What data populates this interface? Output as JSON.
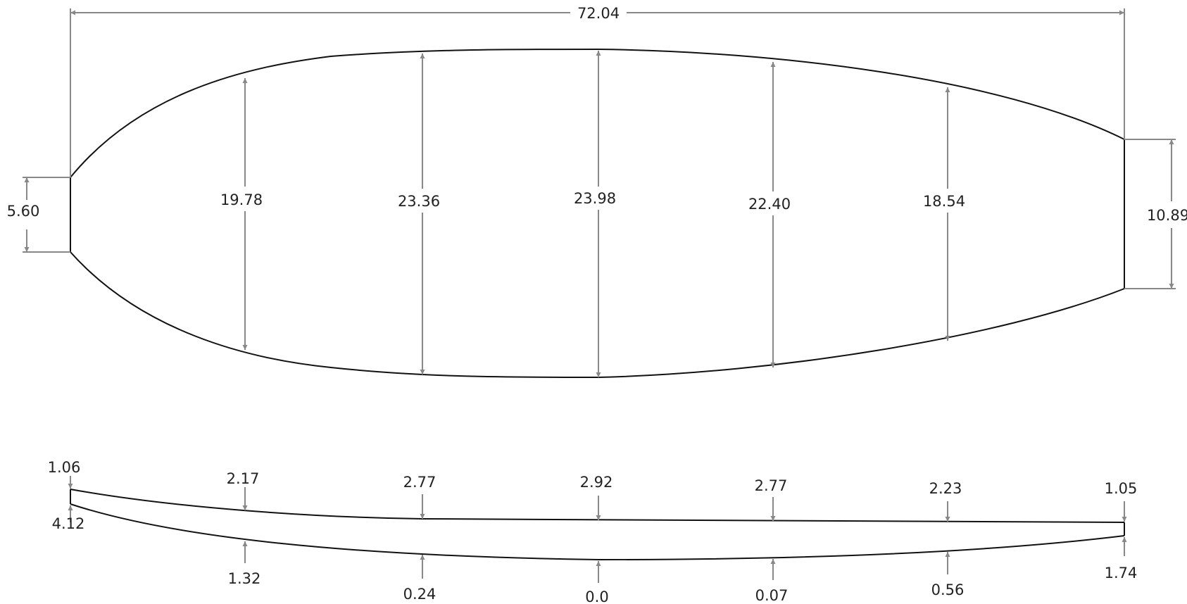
{
  "plan_view": {
    "overall_length": "72.04",
    "nose_width": "5.60",
    "tail_width": "10.89",
    "stations": [
      "19.78",
      "23.36",
      "23.98",
      "22.40",
      "18.54"
    ]
  },
  "profile_view": {
    "deck_nose": "1.06",
    "deck_tail": "1.05",
    "deck_stations": [
      "2.17",
      "2.77",
      "2.92",
      "2.77",
      "2.23"
    ],
    "bottom_nose": "4.12",
    "bottom_tail": "1.74",
    "bottom_stations": [
      "1.32",
      "0.24",
      "0.0",
      "0.07",
      "0.56"
    ]
  },
  "colors": {
    "outline": "#111111",
    "dimension": "#888888",
    "text": "#222222"
  }
}
